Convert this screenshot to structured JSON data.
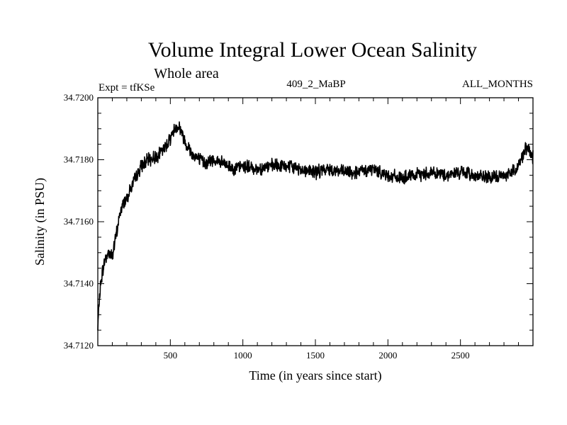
{
  "chart_data": {
    "type": "line",
    "title": "Volume Integral Lower Ocean Salinity",
    "subtitle": "Whole area",
    "experiment": "Expt = tfKSe",
    "run_id": "409_2_MaBP",
    "months": "ALL_MONTHS",
    "xlabel": "Time (in years since start)",
    "ylabel": "Salinity (in PSU)",
    "xlim": [
      0,
      3000
    ],
    "ylim": [
      34.712,
      34.72
    ],
    "x_ticks": [
      500,
      1000,
      1500,
      2000,
      2500
    ],
    "x_tick_labels": [
      "500",
      "1000",
      "1500",
      "2000",
      "2500"
    ],
    "y_ticks": [
      34.712,
      34.714,
      34.716,
      34.718,
      34.72
    ],
    "y_tick_labels": [
      "34.7120",
      "34.7140",
      "34.7160",
      "34.7180",
      "34.7200"
    ],
    "grid": false,
    "series": [
      {
        "name": "salinity",
        "color": "#000000",
        "x": [
          0,
          10,
          25,
          50,
          75,
          100,
          125,
          150,
          175,
          200,
          250,
          300,
          350,
          400,
          450,
          500,
          530,
          560,
          600,
          650,
          700,
          750,
          800,
          850,
          900,
          950,
          1000,
          1100,
          1200,
          1300,
          1400,
          1500,
          1600,
          1700,
          1800,
          1900,
          2000,
          2100,
          2200,
          2300,
          2400,
          2500,
          2600,
          2700,
          2800,
          2850,
          2900,
          2950,
          3000
        ],
        "values": [
          34.7125,
          34.7135,
          34.7142,
          34.7148,
          34.715,
          34.7149,
          34.7155,
          34.7162,
          34.7166,
          34.7168,
          34.7173,
          34.7178,
          34.718,
          34.7181,
          34.7183,
          34.7187,
          34.719,
          34.7191,
          34.7186,
          34.7182,
          34.718,
          34.7179,
          34.718,
          34.7179,
          34.7178,
          34.7177,
          34.7178,
          34.7177,
          34.7178,
          34.7178,
          34.7177,
          34.7176,
          34.7177,
          34.7176,
          34.7176,
          34.7177,
          34.7175,
          34.7174,
          34.7175,
          34.7176,
          34.7175,
          34.7176,
          34.7175,
          34.7174,
          34.7175,
          34.7176,
          34.7178,
          34.7184,
          34.7181
        ]
      }
    ]
  }
}
